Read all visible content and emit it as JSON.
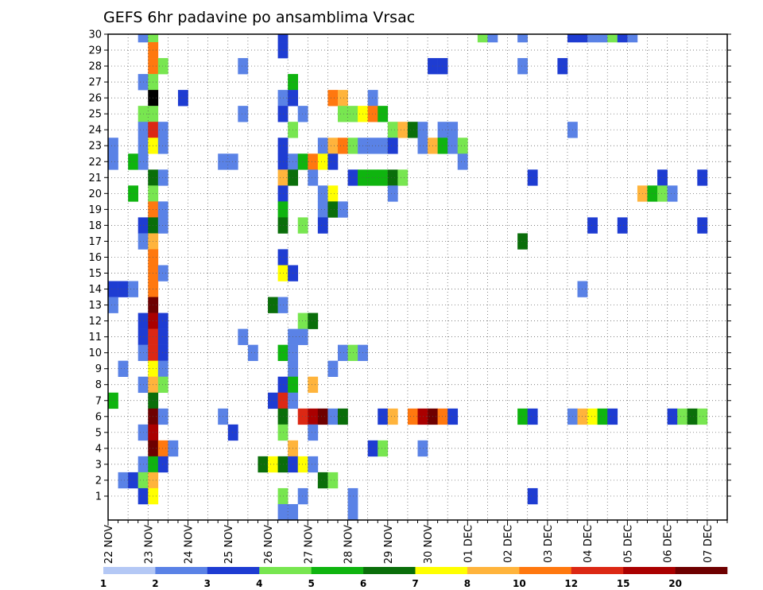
{
  "chart_data": {
    "type": "heatmap",
    "title": "GEFS 6hr padavine po ansamblima Vrsac",
    "xlabel": "",
    "ylabel": "",
    "x_unit": "6-hour steps from 22 NOV 00Z",
    "x_range": [
      0,
      62
    ],
    "x_tick_labels": [
      "22 NOV",
      "23 NOV",
      "24 NOV",
      "25 NOV",
      "26 NOV",
      "27 NOV",
      "28 NOV",
      "29 NOV",
      "30 NOV",
      "01 DEC",
      "02 DEC",
      "03 DEC",
      "04 DEC",
      "05 DEC",
      "06 DEC",
      "07 DEC"
    ],
    "y_tick_labels": [
      "1",
      "2",
      "3",
      "4",
      "5",
      "6",
      "7",
      "8",
      "9",
      "10",
      "11",
      "12",
      "13",
      "14",
      "15",
      "16",
      "17",
      "18",
      "19",
      "20",
      "21",
      "22",
      "23",
      "24",
      "25",
      "26",
      "27",
      "28",
      "29",
      "30"
    ],
    "colorbar": {
      "boundaries": [
        "1",
        "2",
        "3",
        "4",
        "5",
        "6",
        "7",
        "8",
        "10",
        "12",
        "15",
        "20"
      ],
      "colors": [
        "#b4c8f5",
        "#5a82e6",
        "#1e3cd2",
        "#78e650",
        "#0fb40f",
        "#0a6e0a",
        "#ffff00",
        "#ffb43c",
        "#ff780f",
        "#dc2814",
        "#aa0000",
        "#6e0000"
      ]
    },
    "cells": [
      [
        30,
        [
          [
            3,
            1
          ],
          [
            4,
            3
          ],
          [
            17,
            2
          ],
          [
            37,
            3
          ],
          [
            38,
            1
          ],
          [
            41,
            1
          ],
          [
            46,
            2
          ],
          [
            47,
            2
          ],
          [
            48,
            1
          ],
          [
            49,
            1
          ],
          [
            50,
            3
          ],
          [
            51,
            2
          ],
          [
            52,
            1
          ]
        ]
      ],
      [
        29,
        [
          [
            4,
            8
          ],
          [
            17,
            2
          ]
        ]
      ],
      [
        28,
        [
          [
            4,
            8
          ],
          [
            5,
            3
          ],
          [
            13,
            1
          ],
          [
            32,
            2
          ],
          [
            33,
            2
          ],
          [
            41,
            1
          ],
          [
            45,
            2
          ]
        ]
      ],
      [
        27,
        [
          [
            3,
            1
          ],
          [
            4,
            3
          ],
          [
            18,
            4
          ]
        ]
      ],
      [
        26,
        [
          [
            4,
            12
          ],
          [
            7,
            2
          ],
          [
            17,
            1
          ],
          [
            18,
            2
          ],
          [
            22,
            8
          ],
          [
            23,
            7
          ],
          [
            26,
            1
          ]
        ]
      ],
      [
        25,
        [
          [
            3,
            3
          ],
          [
            4,
            3
          ],
          [
            13,
            1
          ],
          [
            17,
            2
          ],
          [
            19,
            1
          ],
          [
            23,
            3
          ],
          [
            24,
            3
          ],
          [
            25,
            6
          ],
          [
            26,
            8
          ],
          [
            27,
            4
          ]
        ]
      ],
      [
        24,
        [
          [
            3,
            1
          ],
          [
            4,
            9
          ],
          [
            5,
            1
          ],
          [
            18,
            3
          ],
          [
            28,
            3
          ],
          [
            29,
            7
          ],
          [
            30,
            5
          ],
          [
            31,
            1
          ],
          [
            33,
            1
          ],
          [
            34,
            1
          ],
          [
            46,
            1
          ]
        ]
      ],
      [
        23,
        [
          [
            0,
            1
          ],
          [
            3,
            1
          ],
          [
            4,
            6
          ],
          [
            5,
            1
          ],
          [
            17,
            2
          ],
          [
            21,
            1
          ],
          [
            22,
            7
          ],
          [
            23,
            8
          ],
          [
            24,
            3
          ],
          [
            25,
            1
          ],
          [
            26,
            1
          ],
          [
            27,
            1
          ],
          [
            28,
            2
          ],
          [
            31,
            1
          ],
          [
            32,
            7
          ],
          [
            33,
            4
          ],
          [
            34,
            1
          ],
          [
            35,
            3
          ]
        ]
      ],
      [
        22,
        [
          [
            0,
            1
          ],
          [
            2,
            4
          ],
          [
            3,
            1
          ],
          [
            11,
            1
          ],
          [
            12,
            1
          ],
          [
            17,
            2
          ],
          [
            18,
            1
          ],
          [
            19,
            4
          ],
          [
            20,
            8
          ],
          [
            21,
            6
          ],
          [
            22,
            2
          ],
          [
            35,
            1
          ]
        ]
      ],
      [
        21,
        [
          [
            4,
            5
          ],
          [
            5,
            1
          ],
          [
            17,
            7
          ],
          [
            18,
            5
          ],
          [
            20,
            1
          ],
          [
            24,
            2
          ],
          [
            25,
            4
          ],
          [
            26,
            4
          ],
          [
            27,
            4
          ],
          [
            28,
            5
          ],
          [
            29,
            3
          ],
          [
            42,
            2
          ],
          [
            55,
            2
          ],
          [
            59,
            2
          ]
        ]
      ],
      [
        20,
        [
          [
            2,
            4
          ],
          [
            4,
            3
          ],
          [
            17,
            2
          ],
          [
            21,
            1
          ],
          [
            22,
            6
          ],
          [
            28,
            1
          ],
          [
            53,
            7
          ],
          [
            54,
            4
          ],
          [
            55,
            3
          ],
          [
            56,
            1
          ]
        ]
      ],
      [
        19,
        [
          [
            4,
            8
          ],
          [
            5,
            1
          ],
          [
            17,
            4
          ],
          [
            21,
            1
          ],
          [
            22,
            5
          ],
          [
            23,
            1
          ]
        ]
      ],
      [
        18,
        [
          [
            3,
            2
          ],
          [
            4,
            5
          ],
          [
            5,
            1
          ],
          [
            17,
            5
          ],
          [
            19,
            3
          ],
          [
            21,
            2
          ],
          [
            48,
            2
          ],
          [
            51,
            2
          ],
          [
            59,
            2
          ]
        ]
      ],
      [
        17,
        [
          [
            3,
            1
          ],
          [
            4,
            7
          ],
          [
            41,
            5
          ]
        ]
      ],
      [
        16,
        [
          [
            4,
            8
          ],
          [
            17,
            2
          ]
        ]
      ],
      [
        15,
        [
          [
            4,
            8
          ],
          [
            5,
            1
          ],
          [
            17,
            6
          ],
          [
            18,
            2
          ]
        ]
      ],
      [
        14,
        [
          [
            0,
            2
          ],
          [
            1,
            2
          ],
          [
            2,
            1
          ],
          [
            4,
            8
          ],
          [
            47,
            1
          ]
        ]
      ],
      [
        13,
        [
          [
            0,
            1
          ],
          [
            4,
            11
          ],
          [
            16,
            5
          ],
          [
            17,
            1
          ]
        ]
      ],
      [
        12,
        [
          [
            3,
            2
          ],
          [
            4,
            10
          ],
          [
            5,
            2
          ],
          [
            19,
            3
          ],
          [
            20,
            5
          ]
        ]
      ],
      [
        11,
        [
          [
            3,
            2
          ],
          [
            4,
            9
          ],
          [
            5,
            2
          ],
          [
            13,
            1
          ],
          [
            18,
            1
          ],
          [
            19,
            1
          ]
        ]
      ],
      [
        10,
        [
          [
            3,
            1
          ],
          [
            4,
            9
          ],
          [
            5,
            2
          ],
          [
            14,
            1
          ],
          [
            17,
            4
          ],
          [
            18,
            1
          ],
          [
            23,
            1
          ],
          [
            24,
            3
          ],
          [
            25,
            1
          ]
        ]
      ],
      [
        9,
        [
          [
            1,
            1
          ],
          [
            4,
            6
          ],
          [
            5,
            1
          ],
          [
            18,
            1
          ],
          [
            22,
            1
          ]
        ]
      ],
      [
        8,
        [
          [
            3,
            1
          ],
          [
            4,
            7
          ],
          [
            5,
            3
          ],
          [
            17,
            2
          ],
          [
            18,
            4
          ],
          [
            20,
            7
          ]
        ]
      ],
      [
        7,
        [
          [
            0,
            4
          ],
          [
            4,
            5
          ],
          [
            16,
            2
          ],
          [
            17,
            9
          ],
          [
            18,
            1
          ]
        ]
      ],
      [
        6,
        [
          [
            4,
            11
          ],
          [
            5,
            1
          ],
          [
            11,
            1
          ],
          [
            17,
            5
          ],
          [
            19,
            9
          ],
          [
            20,
            10
          ],
          [
            21,
            11
          ],
          [
            22,
            1
          ],
          [
            23,
            5
          ],
          [
            27,
            2
          ],
          [
            28,
            7
          ],
          [
            30,
            8
          ],
          [
            31,
            10
          ],
          [
            32,
            11
          ],
          [
            33,
            8
          ],
          [
            34,
            2
          ],
          [
            41,
            4
          ],
          [
            42,
            2
          ],
          [
            46,
            1
          ],
          [
            47,
            7
          ],
          [
            48,
            6
          ],
          [
            49,
            4
          ],
          [
            50,
            2
          ],
          [
            56,
            2
          ],
          [
            57,
            3
          ],
          [
            58,
            5
          ],
          [
            59,
            3
          ]
        ]
      ],
      [
        5,
        [
          [
            3,
            1
          ],
          [
            4,
            10
          ],
          [
            12,
            2
          ],
          [
            17,
            3
          ],
          [
            20,
            1
          ]
        ]
      ],
      [
        4,
        [
          [
            4,
            11
          ],
          [
            5,
            8
          ],
          [
            6,
            1
          ],
          [
            18,
            7
          ],
          [
            26,
            2
          ],
          [
            27,
            3
          ],
          [
            31,
            1
          ]
        ]
      ],
      [
        3,
        [
          [
            3,
            1
          ],
          [
            4,
            4
          ],
          [
            5,
            2
          ],
          [
            15,
            5
          ],
          [
            16,
            6
          ],
          [
            17,
            5
          ],
          [
            18,
            2
          ],
          [
            19,
            6
          ],
          [
            20,
            1
          ]
        ]
      ],
      [
        2,
        [
          [
            1,
            1
          ],
          [
            2,
            2
          ],
          [
            3,
            3
          ],
          [
            4,
            7
          ],
          [
            21,
            5
          ],
          [
            22,
            3
          ]
        ]
      ],
      [
        1,
        [
          [
            3,
            2
          ],
          [
            4,
            6
          ],
          [
            17,
            3
          ],
          [
            19,
            1
          ],
          [
            24,
            1
          ],
          [
            42,
            2
          ]
        ]
      ],
      [
        0,
        [
          [
            17,
            1
          ],
          [
            18,
            1
          ],
          [
            24,
            1
          ]
        ]
      ]
    ]
  }
}
